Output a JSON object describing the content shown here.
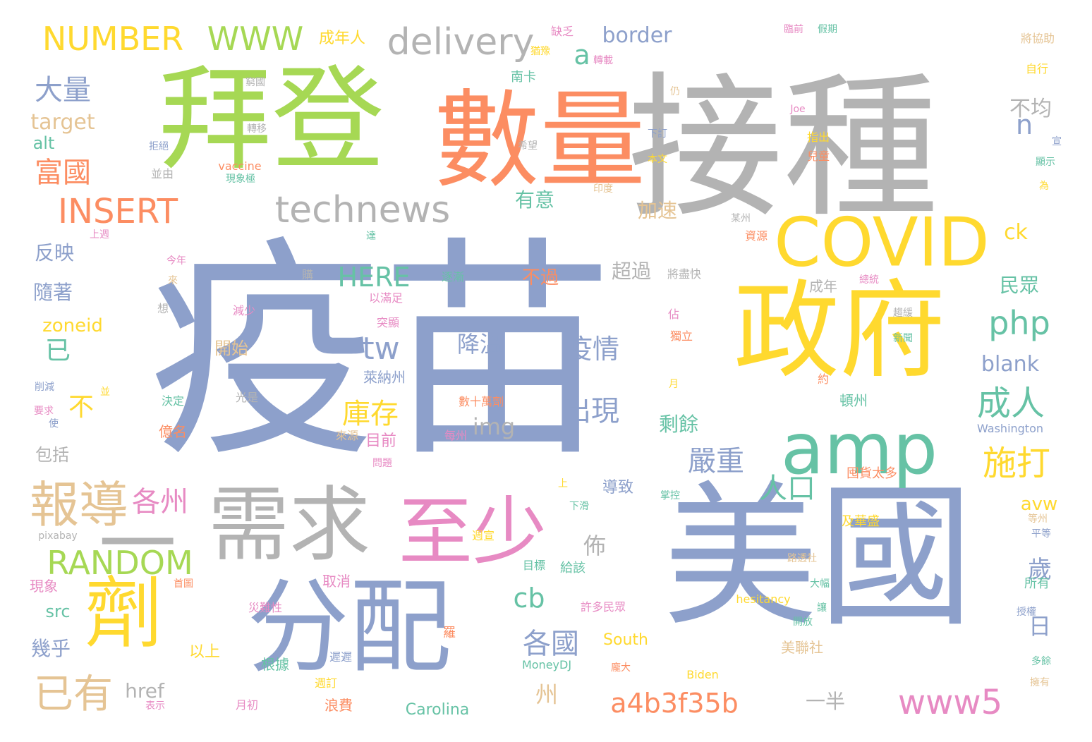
{
  "palette": {
    "blue": "#8DA0CB",
    "orange": "#FC8D62",
    "green": "#A6D854",
    "yellow": "#FFD92F",
    "gray": "#B3B3B3",
    "teal": "#66C2A5",
    "pink": "#E78AC3",
    "tan": "#E5C494"
  },
  "words": [
    {
      "text": "疫苗",
      "c": "blue"
    },
    {
      "text": "接種",
      "c": "gray"
    },
    {
      "text": "美國",
      "c": "blue"
    },
    {
      "text": "拜登",
      "c": "green"
    },
    {
      "text": "數量",
      "c": "orange"
    },
    {
      "text": "政府",
      "c": "yellow"
    },
    {
      "text": "COVID",
      "c": "yellow"
    },
    {
      "text": "分配",
      "c": "blue"
    },
    {
      "text": "至少",
      "c": "pink"
    },
    {
      "text": "需求",
      "c": "gray"
    },
    {
      "text": "劑",
      "c": "yellow"
    },
    {
      "text": "一",
      "c": "gray"
    },
    {
      "text": "amp",
      "c": "teal"
    },
    {
      "text": "technews",
      "c": "gray"
    },
    {
      "text": "delivery",
      "c": "gray"
    },
    {
      "text": "NUMBER",
      "c": "yellow"
    },
    {
      "text": "WWW",
      "c": "green"
    },
    {
      "text": "報導",
      "c": "tan"
    },
    {
      "text": "RANDOM",
      "c": "green"
    },
    {
      "text": "INSERT",
      "c": "orange"
    },
    {
      "text": "a4b3f35b",
      "c": "orange"
    },
    {
      "text": "www5",
      "c": "pink"
    },
    {
      "text": "已有",
      "c": "tan"
    },
    {
      "text": "大量",
      "c": "blue"
    },
    {
      "text": "富國",
      "c": "orange"
    },
    {
      "text": "庫存",
      "c": "yellow"
    },
    {
      "text": "施打",
      "c": "yellow"
    },
    {
      "text": "成人",
      "c": "teal"
    },
    {
      "text": "嚴重",
      "c": "blue"
    },
    {
      "text": "各國",
      "c": "blue"
    },
    {
      "text": "各州",
      "c": "pink"
    },
    {
      "text": "人口",
      "c": "teal"
    },
    {
      "text": "疫情",
      "c": "blue"
    },
    {
      "text": "降溫",
      "c": "blue"
    },
    {
      "text": "出現",
      "c": "blue"
    },
    {
      "text": "tw",
      "c": "blue"
    },
    {
      "text": "php",
      "c": "teal"
    },
    {
      "text": "HERE",
      "c": "teal"
    },
    {
      "text": "border",
      "c": "blue"
    },
    {
      "text": "a",
      "c": "teal"
    },
    {
      "text": "n",
      "c": "blue"
    },
    {
      "text": "cb",
      "c": "teal"
    },
    {
      "text": "img",
      "c": "gray"
    },
    {
      "text": "target",
      "c": "tan"
    },
    {
      "text": "alt",
      "c": "teal"
    },
    {
      "text": "zoneid",
      "c": "yellow"
    },
    {
      "text": "src",
      "c": "teal"
    },
    {
      "text": "href",
      "c": "gray"
    },
    {
      "text": "blank",
      "c": "blue"
    },
    {
      "text": "ck",
      "c": "yellow"
    },
    {
      "text": "avw",
      "c": "yellow"
    },
    {
      "text": "不均",
      "c": "gray"
    },
    {
      "text": "加速",
      "c": "tan"
    },
    {
      "text": "有意",
      "c": "teal"
    },
    {
      "text": "超過",
      "c": "gray"
    },
    {
      "text": "不過",
      "c": "orange"
    },
    {
      "text": "民眾",
      "c": "teal"
    },
    {
      "text": "剩餘",
      "c": "teal"
    },
    {
      "text": "反映",
      "c": "blue"
    },
    {
      "text": "隨著",
      "c": "blue"
    },
    {
      "text": "已",
      "c": "teal"
    },
    {
      "text": "不",
      "c": "yellow"
    },
    {
      "text": "幾乎",
      "c": "blue"
    },
    {
      "text": "包括",
      "c": "gray"
    },
    {
      "text": "開始",
      "c": "tan"
    },
    {
      "text": "佈",
      "c": "gray"
    },
    {
      "text": "歲",
      "c": "blue"
    },
    {
      "text": "日",
      "c": "blue"
    },
    {
      "text": "州",
      "c": "tan"
    },
    {
      "text": "一半",
      "c": "gray"
    },
    {
      "text": "成年人",
      "c": "yellow"
    },
    {
      "text": "萊納州",
      "c": "blue"
    },
    {
      "text": "目前",
      "c": "pink"
    },
    {
      "text": "億名",
      "c": "orange"
    },
    {
      "text": "導致",
      "c": "blue"
    },
    {
      "text": "及華盛",
      "c": "yellow"
    },
    {
      "text": "囤貨太多",
      "c": "orange"
    },
    {
      "text": "頓州",
      "c": "teal"
    },
    {
      "text": "所有",
      "c": "teal"
    },
    {
      "text": "美聯社",
      "c": "tan"
    },
    {
      "text": "South",
      "c": "yellow"
    },
    {
      "text": "Carolina",
      "c": "teal"
    },
    {
      "text": "MoneyDJ",
      "c": "teal"
    },
    {
      "text": "Biden",
      "c": "yellow"
    },
    {
      "text": "hesitancy",
      "c": "yellow"
    },
    {
      "text": "Washington",
      "c": "blue"
    },
    {
      "text": "vaccine",
      "c": "orange"
    },
    {
      "text": "Joe",
      "c": "pink"
    },
    {
      "text": "pixabay",
      "c": "gray"
    },
    {
      "text": "許多民眾",
      "c": "pink"
    },
    {
      "text": "給該",
      "c": "teal"
    },
    {
      "text": "取消",
      "c": "pink"
    },
    {
      "text": "浪費",
      "c": "orange"
    },
    {
      "text": "根據",
      "c": "teal"
    },
    {
      "text": "以上",
      "c": "yellow"
    },
    {
      "text": "遲遲",
      "c": "blue"
    },
    {
      "text": "週訂",
      "c": "yellow"
    },
    {
      "text": "月初",
      "c": "pink"
    },
    {
      "text": "表示",
      "c": "pink"
    },
    {
      "text": "現象",
      "c": "pink"
    },
    {
      "text": "首圖",
      "c": "orange"
    },
    {
      "text": "災難性",
      "c": "pink"
    },
    {
      "text": "羅",
      "c": "orange"
    },
    {
      "text": "目標",
      "c": "teal"
    },
    {
      "text": "週宣",
      "c": "yellow"
    },
    {
      "text": "下滑",
      "c": "teal"
    },
    {
      "text": "掌控",
      "c": "teal"
    },
    {
      "text": "上",
      "c": "yellow"
    },
    {
      "text": "問題",
      "c": "pink"
    },
    {
      "text": "每州",
      "c": "pink"
    },
    {
      "text": "數十萬劑",
      "c": "orange"
    },
    {
      "text": "來源",
      "c": "tan"
    },
    {
      "text": "要求",
      "c": "pink"
    },
    {
      "text": "並",
      "c": "yellow"
    },
    {
      "text": "使",
      "c": "blue"
    },
    {
      "text": "削減",
      "c": "blue"
    },
    {
      "text": "決定",
      "c": "teal"
    },
    {
      "text": "光是",
      "c": "gray"
    },
    {
      "text": "減少",
      "c": "pink"
    },
    {
      "text": "突顯",
      "c": "pink"
    },
    {
      "text": "以滿足",
      "c": "pink"
    },
    {
      "text": "逐漸",
      "c": "teal"
    },
    {
      "text": "購",
      "c": "gray"
    },
    {
      "text": "想",
      "c": "gray"
    },
    {
      "text": "來",
      "c": "tan"
    },
    {
      "text": "今年",
      "c": "pink"
    },
    {
      "text": "上週",
      "c": "pink"
    },
    {
      "text": "達",
      "c": "teal"
    },
    {
      "text": "將盡快",
      "c": "gray"
    },
    {
      "text": "成年",
      "c": "gray"
    },
    {
      "text": "佔",
      "c": "pink"
    },
    {
      "text": "月",
      "c": "yellow"
    },
    {
      "text": "約",
      "c": "orange"
    },
    {
      "text": "獨立",
      "c": "orange"
    },
    {
      "text": "某州",
      "c": "gray"
    },
    {
      "text": "資源",
      "c": "orange"
    },
    {
      "text": "印度",
      "c": "tan"
    },
    {
      "text": "希望",
      "c": "gray"
    },
    {
      "text": "下訂",
      "c": "blue"
    },
    {
      "text": "本文",
      "c": "yellow"
    },
    {
      "text": "指出",
      "c": "yellow"
    },
    {
      "text": "兒童",
      "c": "orange"
    },
    {
      "text": "仍",
      "c": "tan"
    },
    {
      "text": "轉移",
      "c": "gray"
    },
    {
      "text": "拒絕",
      "c": "blue"
    },
    {
      "text": "窮國",
      "c": "gray"
    },
    {
      "text": "並由",
      "c": "gray"
    },
    {
      "text": "現象極",
      "c": "teal"
    },
    {
      "text": "南卡",
      "c": "teal"
    },
    {
      "text": "缺乏",
      "c": "pink"
    },
    {
      "text": "猶豫",
      "c": "yellow"
    },
    {
      "text": "轉載",
      "c": "pink"
    },
    {
      "text": "臨前",
      "c": "pink"
    },
    {
      "text": "假期",
      "c": "teal"
    },
    {
      "text": "將協助",
      "c": "tan"
    },
    {
      "text": "自行",
      "c": "yellow"
    },
    {
      "text": "宣",
      "c": "blue"
    },
    {
      "text": "顯示",
      "c": "teal"
    },
    {
      "text": "為",
      "c": "yellow"
    },
    {
      "text": "總統",
      "c": "pink"
    },
    {
      "text": "趨緩",
      "c": "gray"
    },
    {
      "text": "新聞",
      "c": "teal"
    },
    {
      "text": "路透社",
      "c": "tan"
    },
    {
      "text": "大幅",
      "c": "teal"
    },
    {
      "text": "讓",
      "c": "teal"
    },
    {
      "text": "開放",
      "c": "teal"
    },
    {
      "text": "龐大",
      "c": "orange"
    },
    {
      "text": "授權",
      "c": "blue"
    },
    {
      "text": "等州",
      "c": "tan"
    },
    {
      "text": "平等",
      "c": "blue"
    },
    {
      "text": "多餘",
      "c": "teal"
    },
    {
      "text": "擁有",
      "c": "tan"
    }
  ]
}
